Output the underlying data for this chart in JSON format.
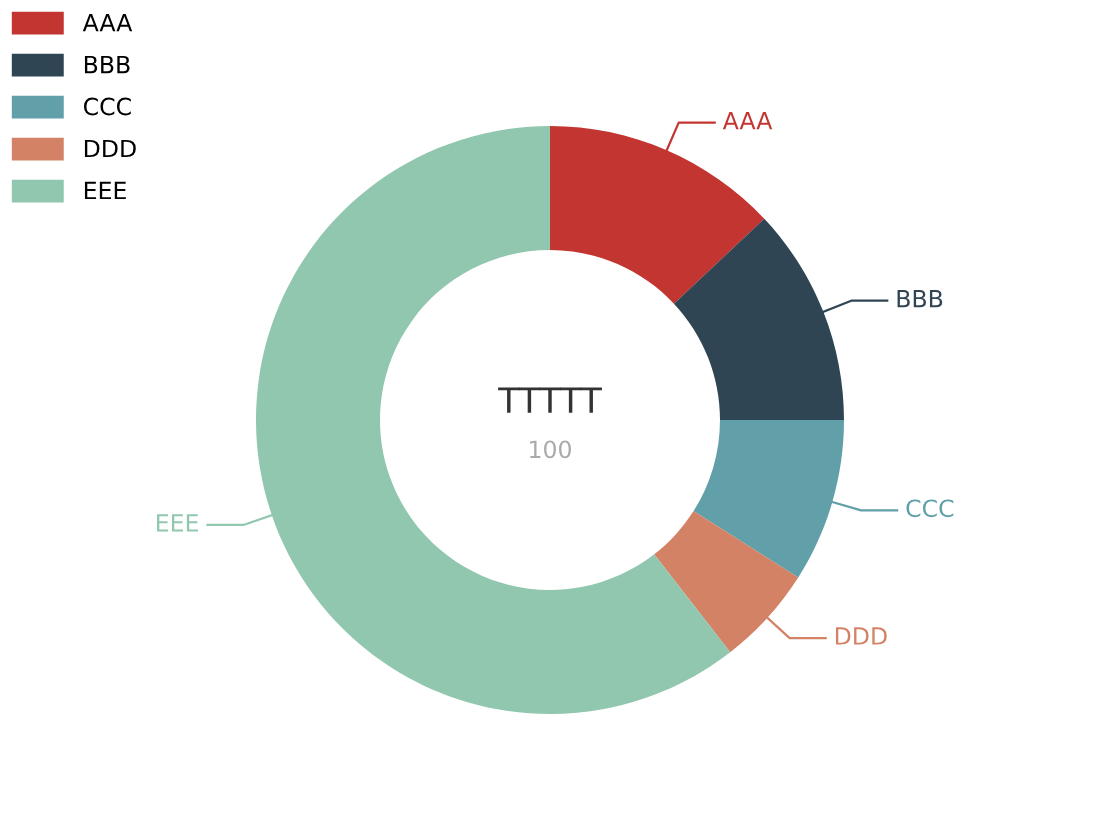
{
  "chart_data": {
    "type": "donut",
    "title": "TTTTT",
    "subtitle": "100",
    "categories": [
      "AAA",
      "BBB",
      "CCC",
      "DDD",
      "EEE"
    ],
    "values": [
      13,
      12,
      9,
      5.5,
      60.5
    ],
    "colors": [
      "#c23531",
      "#2f4554",
      "#61a0a8",
      "#d48265",
      "#91c7ae"
    ],
    "legend": "top left"
  }
}
